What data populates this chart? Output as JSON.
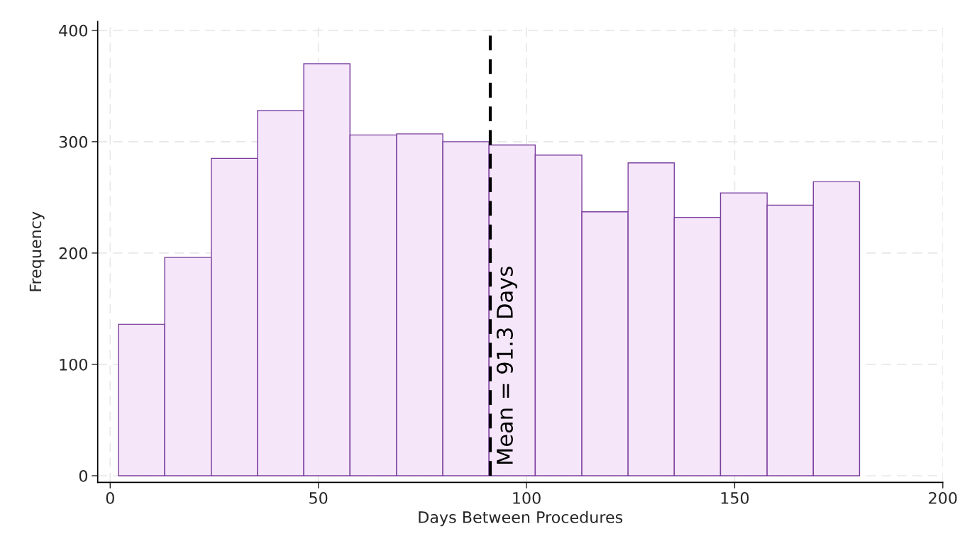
{
  "chart_data": {
    "type": "histogram",
    "xlabel": "Days Between Procedures",
    "ylabel": "Frequency",
    "bins": [
      2,
      13.1,
      24.3,
      35.4,
      46.5,
      57.6,
      68.8,
      79.9,
      91,
      102.1,
      113.3,
      124.4,
      135.5,
      146.6,
      157.8,
      168.9,
      180
    ],
    "values": [
      136,
      196,
      285,
      328,
      370,
      306,
      307,
      300,
      297,
      288,
      237,
      281,
      232,
      254,
      243,
      264
    ],
    "color": "#f5e6fa",
    "xlim": [
      -3,
      200
    ],
    "xticks": [
      0,
      50,
      100,
      150,
      200
    ],
    "ylim": [
      -6,
      408
    ],
    "yticks": [
      0,
      100,
      200,
      300,
      400
    ],
    "grid": true,
    "ref_lines": [
      {
        "axis": "x",
        "value": 91.3,
        "label": "Mean = 91.3 Days",
        "color": "#000000",
        "line_style": "dashed"
      }
    ]
  }
}
